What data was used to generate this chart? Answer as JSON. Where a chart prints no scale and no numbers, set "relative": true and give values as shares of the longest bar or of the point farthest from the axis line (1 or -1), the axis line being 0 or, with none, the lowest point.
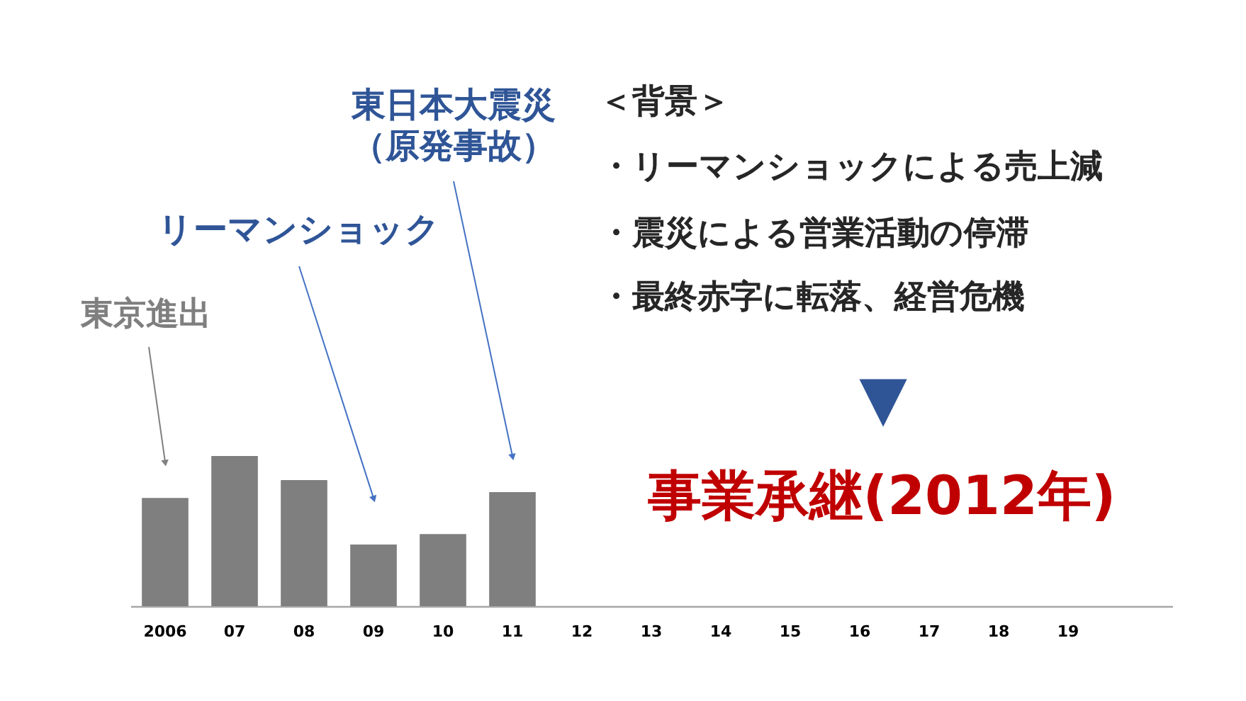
{
  "chart_data": {
    "type": "bar",
    "relative": true,
    "categories": [
      "2006",
      "07",
      "08",
      "09",
      "10",
      "11",
      "12",
      "13",
      "14",
      "15",
      "16",
      "17",
      "18",
      "19",
      null
    ],
    "values": [
      0.72,
      1,
      0.84,
      0.41,
      0.48,
      0.76,
      null,
      null,
      null,
      null,
      null,
      null,
      null,
      null,
      null
    ],
    "color": "#7f7f7f",
    "annotations": [
      {
        "text": "東京進出",
        "x": "2006",
        "y": 0.96
      },
      {
        "text": "リーマンショック",
        "x": "09",
        "y": 0.72
      },
      {
        "text": "東日本大震災（原発事故）",
        "x": "11",
        "y": 1.0
      },
      "＜背景＞",
      "・リーマンショックによる売上減",
      "・震災による営業活動の停滞",
      "・最終赤字に転落、経営危機",
      "▼",
      "事業承継(2012年)"
    ]
  }
}
